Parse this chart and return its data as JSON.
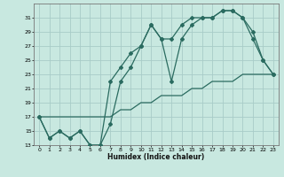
{
  "xlabel": "Humidex (Indice chaleur)",
  "bg_color": "#c8e8e0",
  "grid_color": "#a8ccc8",
  "line_color": "#2a6b60",
  "line1_x": [
    0,
    1,
    2,
    3,
    4,
    5,
    6,
    7,
    8,
    9,
    10,
    11,
    12,
    13,
    14,
    15,
    16,
    17,
    18,
    19,
    20,
    21,
    22,
    23
  ],
  "line1_y": [
    17,
    14,
    15,
    14,
    15,
    13,
    13,
    22,
    24,
    26,
    27,
    30,
    28,
    28,
    30,
    31,
    31,
    31,
    32,
    32,
    31,
    29,
    25,
    23
  ],
  "line2_x": [
    0,
    1,
    2,
    3,
    4,
    5,
    6,
    7,
    8,
    9,
    10,
    11,
    12,
    13,
    14,
    15,
    16,
    17,
    18,
    19,
    20,
    21,
    22,
    23
  ],
  "line2_y": [
    17,
    14,
    15,
    14,
    15,
    13,
    13,
    16,
    22,
    24,
    27,
    30,
    28,
    22,
    28,
    30,
    31,
    31,
    32,
    32,
    31,
    28,
    25,
    23
  ],
  "line3_x": [
    0,
    1,
    2,
    3,
    4,
    5,
    6,
    7,
    8,
    9,
    10,
    11,
    12,
    13,
    14,
    15,
    16,
    17,
    18,
    19,
    20,
    21,
    22,
    23
  ],
  "line3_y": [
    17,
    17,
    17,
    17,
    17,
    17,
    17,
    17,
    18,
    18,
    19,
    19,
    20,
    20,
    20,
    21,
    21,
    22,
    22,
    22,
    23,
    23,
    23,
    23
  ],
  "xmin": -0.5,
  "xmax": 23.5,
  "ymin": 13,
  "ymax": 33,
  "yticks": [
    13,
    15,
    17,
    19,
    21,
    23,
    25,
    27,
    29,
    31
  ],
  "xticks": [
    0,
    1,
    2,
    3,
    4,
    5,
    6,
    7,
    8,
    9,
    10,
    11,
    12,
    13,
    14,
    15,
    16,
    17,
    18,
    19,
    20,
    21,
    22,
    23
  ]
}
